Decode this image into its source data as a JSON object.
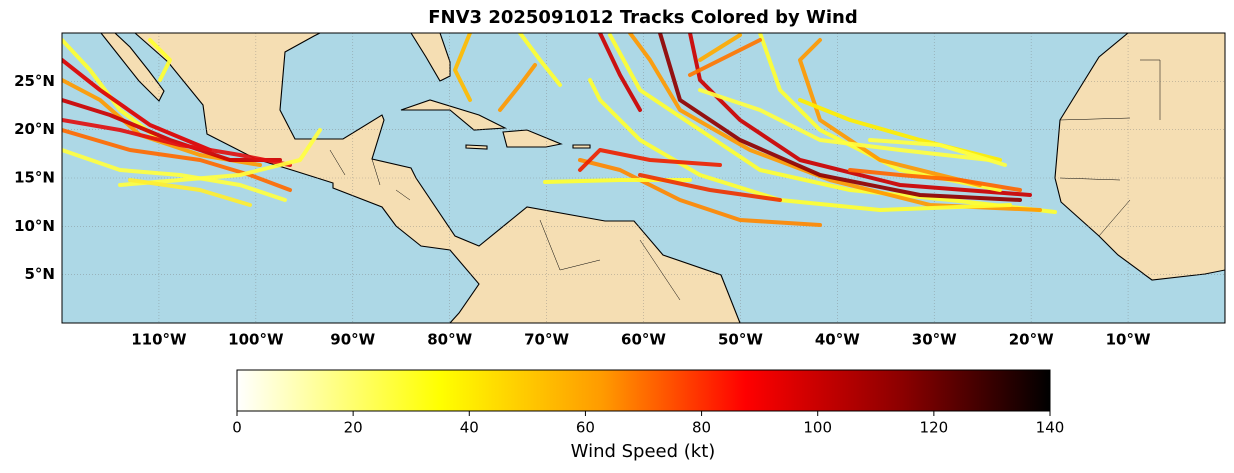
{
  "title": "FNV3 2025091012 Tracks Colored by Wind",
  "map": {
    "lon_range": [
      -120,
      0
    ],
    "lat_range": [
      0,
      30
    ],
    "lon_ticks": [
      {
        "value": -110,
        "label": "110°W"
      },
      {
        "value": -100,
        "label": "100°W"
      },
      {
        "value": -90,
        "label": "90°W"
      },
      {
        "value": -80,
        "label": "80°W"
      },
      {
        "value": -70,
        "label": "70°W"
      },
      {
        "value": -60,
        "label": "60°W"
      },
      {
        "value": -50,
        "label": "50°W"
      },
      {
        "value": -40,
        "label": "40°W"
      },
      {
        "value": -30,
        "label": "30°W"
      },
      {
        "value": -20,
        "label": "20°W"
      },
      {
        "value": -10,
        "label": "10°W"
      }
    ],
    "lat_ticks": [
      {
        "value": 5,
        "label": "5°N"
      },
      {
        "value": 10,
        "label": "10°N"
      },
      {
        "value": 15,
        "label": "15°N"
      },
      {
        "value": 20,
        "label": "20°N"
      },
      {
        "value": 25,
        "label": "25°N"
      }
    ]
  },
  "colorbar": {
    "range": [
      0,
      140
    ],
    "ticks": [
      0,
      20,
      40,
      60,
      80,
      100,
      120,
      140
    ],
    "label": "Wind Speed (kt)"
  }
}
